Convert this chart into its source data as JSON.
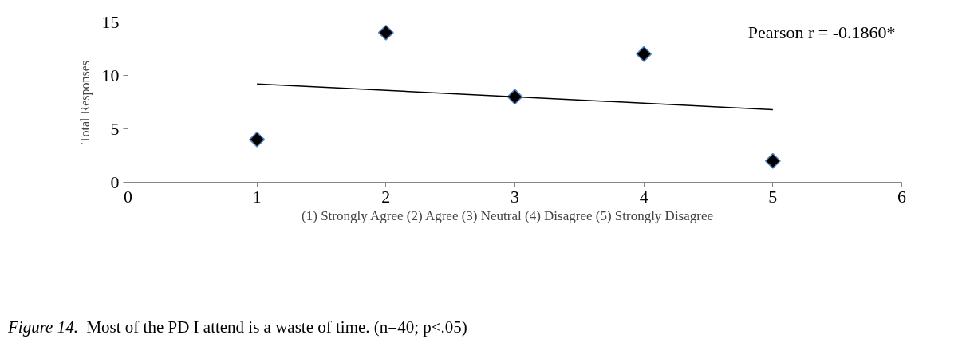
{
  "chart_data": {
    "type": "scatter",
    "xlabel": "(1) Strongly Agree  (2) Agree  (3) Neutral  (4) Disagree  (5) Strongly Disagree",
    "ylabel": "Total Responses",
    "x": [
      1,
      2,
      3,
      4,
      5
    ],
    "series": [
      {
        "color": "#000000",
        "marker": "diamond",
        "values": [
          4,
          14,
          8,
          12,
          2
        ]
      },
      {
        "type": "line",
        "color": "#000000",
        "x": [
          1,
          5
        ],
        "values": [
          9.2,
          6.8
        ]
      }
    ],
    "xlim": [
      0,
      6
    ],
    "xticks": [
      0,
      1,
      2,
      3,
      4,
      5,
      6
    ],
    "ylim": [
      0,
      15
    ],
    "yticks": [
      0,
      5,
      10,
      15
    ],
    "annotations": [
      "Pearson r = -0.1860*",
      "Figure 14.",
      "Most of the PD I attend is a waste of time.  (n=40; p<.05)"
    ]
  }
}
